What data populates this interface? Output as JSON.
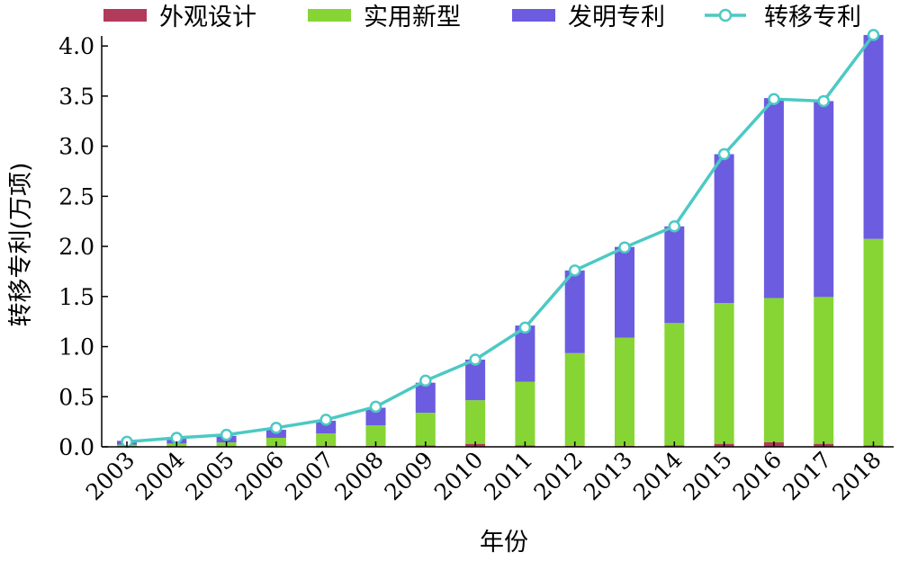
{
  "chart_data": {
    "type": "bar",
    "stacked": true,
    "categories": [
      "2003",
      "2004",
      "2005",
      "2006",
      "2007",
      "2008",
      "2009",
      "2010",
      "2011",
      "2012",
      "2013",
      "2014",
      "2015",
      "2016",
      "2017",
      "2018"
    ],
    "series": [
      {
        "name": "外观设计",
        "kind": "bar",
        "color": "#b23a5a",
        "values": [
          0.002,
          0.003,
          0.004,
          0.005,
          0.008,
          0.01,
          0.015,
          0.03,
          0.015,
          0.01,
          0.01,
          0.015,
          0.03,
          0.045,
          0.03,
          0.015
        ]
      },
      {
        "name": "实用新型",
        "kind": "bar",
        "color": "#86d534",
        "values": [
          0.02,
          0.03,
          0.04,
          0.085,
          0.125,
          0.205,
          0.325,
          0.435,
          0.635,
          0.925,
          1.08,
          1.22,
          1.405,
          1.44,
          1.465,
          2.06
        ]
      },
      {
        "name": "发明专利",
        "kind": "bar",
        "color": "#6c5ce0",
        "values": [
          0.038,
          0.047,
          0.066,
          0.08,
          0.127,
          0.175,
          0.3,
          0.405,
          0.56,
          0.825,
          0.905,
          0.965,
          1.485,
          1.995,
          1.955,
          2.035
        ]
      },
      {
        "name": "转移专利",
        "kind": "line",
        "color": "#4cc9c4",
        "values": [
          0.05,
          0.09,
          0.12,
          0.19,
          0.27,
          0.4,
          0.66,
          0.87,
          1.19,
          1.76,
          1.99,
          2.2,
          2.92,
          3.47,
          3.45,
          4.11
        ]
      }
    ],
    "xlabel": "年份",
    "ylabel": "转移专利(万项)",
    "ylim": [
      0,
      4.1
    ],
    "yticks": [
      "0.0",
      "0.5",
      "1.0",
      "1.5",
      "2.0",
      "2.5",
      "3.0",
      "3.5",
      "4.0"
    ],
    "legend_position": "top",
    "grid": false
  }
}
